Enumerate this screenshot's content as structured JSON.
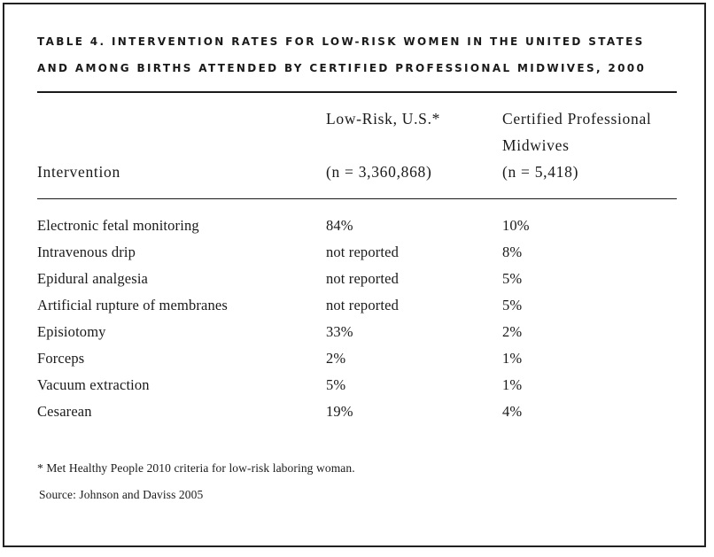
{
  "table": {
    "title_line1": "TABLE 4. INTERVENTION RATES FOR LOW-RISK WOMEN IN THE UNITED STATES",
    "title_line2": "AND AMONG BIRTHS ATTENDED BY CERTIFIED PROFESSIONAL MIDWIVES, 2000",
    "headers": {
      "intervention": "Intervention",
      "lowrisk_line1": "Low-Risk, U.S.*",
      "lowrisk_line2": "(n = 3,360,868)",
      "cpm_line1": "Certified Professional",
      "cpm_line2": "Midwives",
      "cpm_line3": "(n = 5,418)"
    },
    "rows": [
      {
        "intervention": "Electronic fetal monitoring",
        "lowrisk": "84%",
        "cpm": "10%"
      },
      {
        "intervention": "Intravenous drip",
        "lowrisk": "not reported",
        "cpm": "8%"
      },
      {
        "intervention": "Epidural analgesia",
        "lowrisk": "not reported",
        "cpm": "5%"
      },
      {
        "intervention": "Artificial rupture of membranes",
        "lowrisk": "not reported",
        "cpm": "5%"
      },
      {
        "intervention": "Episiotomy",
        "lowrisk": "33%",
        "cpm": "2%"
      },
      {
        "intervention": "Forceps",
        "lowrisk": "2%",
        "cpm": "1%"
      },
      {
        "intervention": "Vacuum extraction",
        "lowrisk": "5%",
        "cpm": "1%"
      },
      {
        "intervention": "Cesarean",
        "lowrisk": "19%",
        "cpm": "4%"
      }
    ],
    "footnote": "*  Met Healthy People 2010 criteria for low-risk laboring woman.",
    "source": "Source: Johnson and Daviss 2005"
  }
}
